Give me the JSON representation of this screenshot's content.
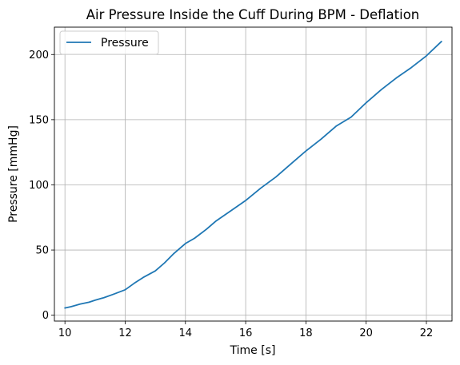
{
  "chart_data": {
    "type": "line",
    "title": "Air Pressure Inside the Cuff During BPM - Deflation",
    "xlabel": "Time [s]",
    "ylabel": "Pressure [mmHg]",
    "xlim": [
      9.65,
      22.85
    ],
    "ylim": [
      -4.5,
      221
    ],
    "xticks": [
      10,
      12,
      14,
      16,
      18,
      20,
      22
    ],
    "yticks": [
      0,
      50,
      100,
      150,
      200
    ],
    "grid": true,
    "legend_position": "top-left",
    "series": [
      {
        "name": "Pressure",
        "color": "#1f77b4",
        "x": [
          10.0,
          10.2,
          10.5,
          10.8,
          11.0,
          11.3,
          11.6,
          12.0,
          12.3,
          12.6,
          13.0,
          13.3,
          13.6,
          14.0,
          14.3,
          14.7,
          15.0,
          15.5,
          16.0,
          16.5,
          17.0,
          17.5,
          18.0,
          18.5,
          19.0,
          19.5,
          20.0,
          20.5,
          21.0,
          21.5,
          22.0,
          22.5
        ],
        "values": [
          5.5,
          6.5,
          8.5,
          10.0,
          11.5,
          13.5,
          16.0,
          19.5,
          24.5,
          29.0,
          34.0,
          40.0,
          47.0,
          55.0,
          59.0,
          66.0,
          72.0,
          80.0,
          88.0,
          97.5,
          106.0,
          116.0,
          126.0,
          135.0,
          145.0,
          152.0,
          163.0,
          173.0,
          182.0,
          190.0,
          199.0,
          210.0
        ]
      }
    ]
  }
}
